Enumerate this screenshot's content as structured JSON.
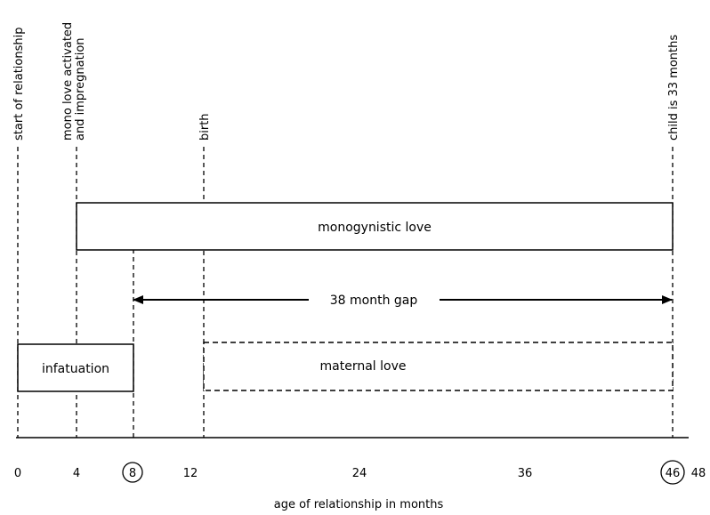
{
  "event_labels": {
    "start": "start of relationship",
    "mono_line1": "mono love activated",
    "mono_line2": "and impregnation",
    "birth": "birth",
    "child": "child is 33 months"
  },
  "boxes": {
    "monogynistic": "monogynistic love",
    "infatuation": "infatuation",
    "maternal": "maternal love"
  },
  "gap_label": "38 month gap",
  "axis": {
    "ticks": [
      "0",
      "4",
      "8",
      "12",
      "24",
      "36",
      "46",
      "48"
    ],
    "circled": [
      "8",
      "46"
    ],
    "title": "age of relationship in months"
  }
}
